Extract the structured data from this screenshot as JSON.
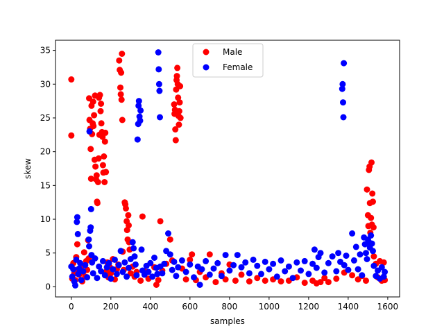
{
  "chart_data": {
    "type": "scatter",
    "title": "",
    "xlabel": "samples",
    "ylabel": "skew",
    "xlim": [
      -80,
      1660
    ],
    "ylim": [
      -1.5,
      36.5
    ],
    "xticks": [
      0,
      200,
      400,
      600,
      800,
      1000,
      1200,
      1400,
      1600
    ],
    "yticks": [
      0,
      5,
      10,
      15,
      20,
      25,
      30,
      35
    ],
    "grid": false,
    "legend_position": "top-center",
    "series": [
      {
        "name": "Male",
        "color": "#ff0000",
        "points": [
          [
            0,
            30.7
          ],
          [
            0,
            22.4
          ],
          [
            5,
            1.2
          ],
          [
            10,
            3.5
          ],
          [
            15,
            2.0
          ],
          [
            20,
            1.0
          ],
          [
            25,
            4.4
          ],
          [
            30,
            6.3
          ],
          [
            35,
            2.6
          ],
          [
            40,
            1.8
          ],
          [
            50,
            3.0
          ],
          [
            55,
            0.8
          ],
          [
            60,
            2.2
          ],
          [
            65,
            5.1
          ],
          [
            70,
            1.5
          ],
          [
            75,
            3.8
          ],
          [
            80,
            2.5
          ],
          [
            85,
            6.9
          ],
          [
            88,
            4.2
          ],
          [
            90,
            27.9
          ],
          [
            92,
            24.7
          ],
          [
            95,
            23.4
          ],
          [
            98,
            20.4
          ],
          [
            100,
            16.0
          ],
          [
            102,
            26.8
          ],
          [
            105,
            22.6
          ],
          [
            108,
            24.2
          ],
          [
            110,
            27.4
          ],
          [
            112,
            23.8
          ],
          [
            115,
            25.4
          ],
          [
            118,
            18.8
          ],
          [
            120,
            28.3
          ],
          [
            122,
            17.8
          ],
          [
            125,
            15.9
          ],
          [
            128,
            16.5
          ],
          [
            130,
            12.6
          ],
          [
            132,
            12.4
          ],
          [
            135,
            15.5
          ],
          [
            138,
            19.0
          ],
          [
            140,
            28.0
          ],
          [
            142,
            22.5
          ],
          [
            145,
            28.4
          ],
          [
            148,
            26.0
          ],
          [
            150,
            27.1
          ],
          [
            152,
            24.2
          ],
          [
            155,
            22.9
          ],
          [
            158,
            22.2
          ],
          [
            160,
            18.0
          ],
          [
            162,
            16.9
          ],
          [
            165,
            19.3
          ],
          [
            168,
            15.5
          ],
          [
            170,
            21.5
          ],
          [
            172,
            22.8
          ],
          [
            175,
            17.0
          ],
          [
            178,
            2.3
          ],
          [
            182,
            3.6
          ],
          [
            188,
            1.4
          ],
          [
            195,
            2.9
          ],
          [
            200,
            2.0
          ],
          [
            210,
            4.1
          ],
          [
            220,
            1.1
          ],
          [
            230,
            2.6
          ],
          [
            238,
            3.3
          ],
          [
            242,
            33.5
          ],
          [
            245,
            32.1
          ],
          [
            248,
            29.5
          ],
          [
            250,
            28.5
          ],
          [
            252,
            31.7
          ],
          [
            254,
            27.7
          ],
          [
            256,
            34.5
          ],
          [
            258,
            24.7
          ],
          [
            260,
            5.2
          ],
          [
            265,
            2.5
          ],
          [
            270,
            12.5
          ],
          [
            273,
            12.2
          ],
          [
            276,
            11.6
          ],
          [
            280,
            9.7
          ],
          [
            282,
            8.4
          ],
          [
            285,
            7.0
          ],
          [
            288,
            10.6
          ],
          [
            290,
            9.1
          ],
          [
            292,
            6.6
          ],
          [
            295,
            5.5
          ],
          [
            300,
            2.0
          ],
          [
            310,
            3.0
          ],
          [
            320,
            1.5
          ],
          [
            330,
            2.2
          ],
          [
            350,
            0.9
          ],
          [
            360,
            10.4
          ],
          [
            370,
            2.3
          ],
          [
            390,
            1.2
          ],
          [
            420,
            2.9
          ],
          [
            430,
            0.3
          ],
          [
            440,
            1.0
          ],
          [
            450,
            9.7
          ],
          [
            460,
            2.4
          ],
          [
            480,
            3.4
          ],
          [
            500,
            7.0
          ],
          [
            510,
            3.9
          ],
          [
            520,
            27.0
          ],
          [
            522,
            25.6
          ],
          [
            524,
            26.2
          ],
          [
            526,
            23.3
          ],
          [
            528,
            21.7
          ],
          [
            530,
            29.2
          ],
          [
            532,
            30.6
          ],
          [
            534,
            31.2
          ],
          [
            536,
            32.4
          ],
          [
            538,
            30.0
          ],
          [
            540,
            28.0
          ],
          [
            542,
            25.3
          ],
          [
            544,
            24.0
          ],
          [
            546,
            26.0
          ],
          [
            548,
            27.3
          ],
          [
            550,
            29.7
          ],
          [
            552,
            25.0
          ],
          [
            560,
            2.7
          ],
          [
            580,
            1.1
          ],
          [
            600,
            4.0
          ],
          [
            610,
            4.8
          ],
          [
            630,
            1.0
          ],
          [
            650,
            2.2
          ],
          [
            680,
            1.4
          ],
          [
            700,
            4.8
          ],
          [
            730,
            0.7
          ],
          [
            760,
            2.0
          ],
          [
            780,
            1.1
          ],
          [
            800,
            3.3
          ],
          [
            830,
            0.9
          ],
          [
            860,
            1.8
          ],
          [
            900,
            0.8
          ],
          [
            940,
            1.3
          ],
          [
            980,
            0.9
          ],
          [
            1020,
            1.1
          ],
          [
            1060,
            0.8
          ],
          [
            1100,
            0.9
          ],
          [
            1140,
            1.4
          ],
          [
            1180,
            0.6
          ],
          [
            1220,
            0.9
          ],
          [
            1240,
            0.5
          ],
          [
            1260,
            0.7
          ],
          [
            1280,
            1.3
          ],
          [
            1300,
            0.7
          ],
          [
            1340,
            1.2
          ],
          [
            1380,
            2.1
          ],
          [
            1420,
            1.7
          ],
          [
            1450,
            1.1
          ],
          [
            1470,
            1.6
          ],
          [
            1490,
            0.9
          ],
          [
            1495,
            14.4
          ],
          [
            1500,
            10.6
          ],
          [
            1502,
            9.0
          ],
          [
            1505,
            17.3
          ],
          [
            1508,
            17.8
          ],
          [
            1510,
            12.4
          ],
          [
            1512,
            8.0
          ],
          [
            1515,
            10.2
          ],
          [
            1518,
            18.4
          ],
          [
            1520,
            9.2
          ],
          [
            1522,
            13.8
          ],
          [
            1525,
            12.6
          ],
          [
            1528,
            8.8
          ],
          [
            1530,
            4.5
          ],
          [
            1540,
            3.4
          ],
          [
            1550,
            1.4
          ],
          [
            1560,
            3.8
          ],
          [
            1570,
            0.9
          ],
          [
            1580,
            3.6
          ],
          [
            1585,
            1.0
          ]
        ]
      },
      {
        "name": "Female",
        "color": "#0000ff",
        "points": [
          [
            0,
            3.0
          ],
          [
            5,
            1.5
          ],
          [
            10,
            2.6
          ],
          [
            15,
            0.8
          ],
          [
            20,
            0.2
          ],
          [
            25,
            4.0
          ],
          [
            28,
            9.6
          ],
          [
            30,
            10.3
          ],
          [
            33,
            7.8
          ],
          [
            35,
            1.9
          ],
          [
            40,
            2.7
          ],
          [
            45,
            3.5
          ],
          [
            50,
            1.0
          ],
          [
            60,
            2.3
          ],
          [
            70,
            3.2
          ],
          [
            80,
            1.4
          ],
          [
            88,
            7.0
          ],
          [
            90,
            6.0
          ],
          [
            92,
            23.0
          ],
          [
            95,
            8.3
          ],
          [
            98,
            8.8
          ],
          [
            100,
            11.5
          ],
          [
            102,
            4.7
          ],
          [
            105,
            3.6
          ],
          [
            110,
            2.0
          ],
          [
            120,
            4.2
          ],
          [
            130,
            1.3
          ],
          [
            140,
            3.0
          ],
          [
            150,
            2.3
          ],
          [
            160,
            3.8
          ],
          [
            170,
            1.7
          ],
          [
            180,
            2.9
          ],
          [
            190,
            3.5
          ],
          [
            200,
            1.2
          ],
          [
            210,
            2.6
          ],
          [
            220,
            4.0
          ],
          [
            230,
            1.9
          ],
          [
            240,
            3.2
          ],
          [
            250,
            5.3
          ],
          [
            260,
            2.2
          ],
          [
            270,
            3.6
          ],
          [
            280,
            1.5
          ],
          [
            290,
            2.8
          ],
          [
            300,
            4.1
          ],
          [
            310,
            6.6
          ],
          [
            315,
            5.7
          ],
          [
            320,
            4.5
          ],
          [
            325,
            3.3
          ],
          [
            330,
            1.7
          ],
          [
            335,
            21.8
          ],
          [
            338,
            24.1
          ],
          [
            340,
            26.8
          ],
          [
            342,
            27.5
          ],
          [
            345,
            25.2
          ],
          [
            348,
            24.6
          ],
          [
            350,
            26.1
          ],
          [
            355,
            5.5
          ],
          [
            360,
            2.4
          ],
          [
            370,
            1.8
          ],
          [
            380,
            3.1
          ],
          [
            390,
            2.2
          ],
          [
            400,
            3.5
          ],
          [
            410,
            1.5
          ],
          [
            420,
            4.3
          ],
          [
            430,
            2.8
          ],
          [
            435,
            1.9
          ],
          [
            440,
            34.7
          ],
          [
            442,
            32.2
          ],
          [
            444,
            30.0
          ],
          [
            446,
            29.0
          ],
          [
            448,
            25.1
          ],
          [
            450,
            3.0
          ],
          [
            460,
            2.0
          ],
          [
            470,
            3.4
          ],
          [
            480,
            5.3
          ],
          [
            490,
            7.9
          ],
          [
            500,
            4.8
          ],
          [
            510,
            2.5
          ],
          [
            520,
            3.7
          ],
          [
            530,
            1.6
          ],
          [
            540,
            2.9
          ],
          [
            560,
            3.9
          ],
          [
            580,
            2.2
          ],
          [
            600,
            3.3
          ],
          [
            620,
            1.4
          ],
          [
            640,
            3.0
          ],
          [
            650,
            0.3
          ],
          [
            660,
            2.6
          ],
          [
            680,
            3.8
          ],
          [
            700,
            1.8
          ],
          [
            720,
            2.7
          ],
          [
            740,
            3.5
          ],
          [
            760,
            1.6
          ],
          [
            780,
            4.7
          ],
          [
            800,
            2.4
          ],
          [
            820,
            3.2
          ],
          [
            840,
            4.7
          ],
          [
            860,
            2.9
          ],
          [
            880,
            3.6
          ],
          [
            900,
            2.0
          ],
          [
            920,
            4.0
          ],
          [
            940,
            3.1
          ],
          [
            960,
            1.9
          ],
          [
            980,
            3.7
          ],
          [
            1000,
            2.6
          ],
          [
            1020,
            3.4
          ],
          [
            1040,
            1.5
          ],
          [
            1060,
            3.9
          ],
          [
            1080,
            2.3
          ],
          [
            1100,
            3.0
          ],
          [
            1120,
            1.3
          ],
          [
            1140,
            3.6
          ],
          [
            1160,
            2.4
          ],
          [
            1180,
            3.8
          ],
          [
            1200,
            1.9
          ],
          [
            1220,
            3.4
          ],
          [
            1230,
            5.5
          ],
          [
            1240,
            2.8
          ],
          [
            1250,
            4.4
          ],
          [
            1260,
            5.0
          ],
          [
            1280,
            2.1
          ],
          [
            1300,
            3.5
          ],
          [
            1320,
            4.5
          ],
          [
            1340,
            2.3
          ],
          [
            1350,
            5.0
          ],
          [
            1360,
            3.7
          ],
          [
            1370,
            29.3
          ],
          [
            1372,
            30.0
          ],
          [
            1374,
            27.3
          ],
          [
            1376,
            25.1
          ],
          [
            1378,
            33.1
          ],
          [
            1380,
            3.2
          ],
          [
            1390,
            4.6
          ],
          [
            1400,
            2.5
          ],
          [
            1420,
            7.9
          ],
          [
            1430,
            3.9
          ],
          [
            1440,
            5.9
          ],
          [
            1450,
            2.6
          ],
          [
            1460,
            4.8
          ],
          [
            1470,
            1.7
          ],
          [
            1480,
            7.3
          ],
          [
            1485,
            6.3
          ],
          [
            1490,
            5.0
          ],
          [
            1495,
            4.1
          ],
          [
            1500,
            7.0
          ],
          [
            1505,
            6.6
          ],
          [
            1510,
            5.8
          ],
          [
            1515,
            7.6
          ],
          [
            1520,
            6.4
          ],
          [
            1525,
            5.3
          ],
          [
            1530,
            3.1
          ],
          [
            1540,
            1.6
          ],
          [
            1550,
            2.4
          ],
          [
            1560,
            1.2
          ],
          [
            1570,
            2.9
          ],
          [
            1580,
            1.5
          ],
          [
            1585,
            2.2
          ]
        ]
      }
    ]
  }
}
